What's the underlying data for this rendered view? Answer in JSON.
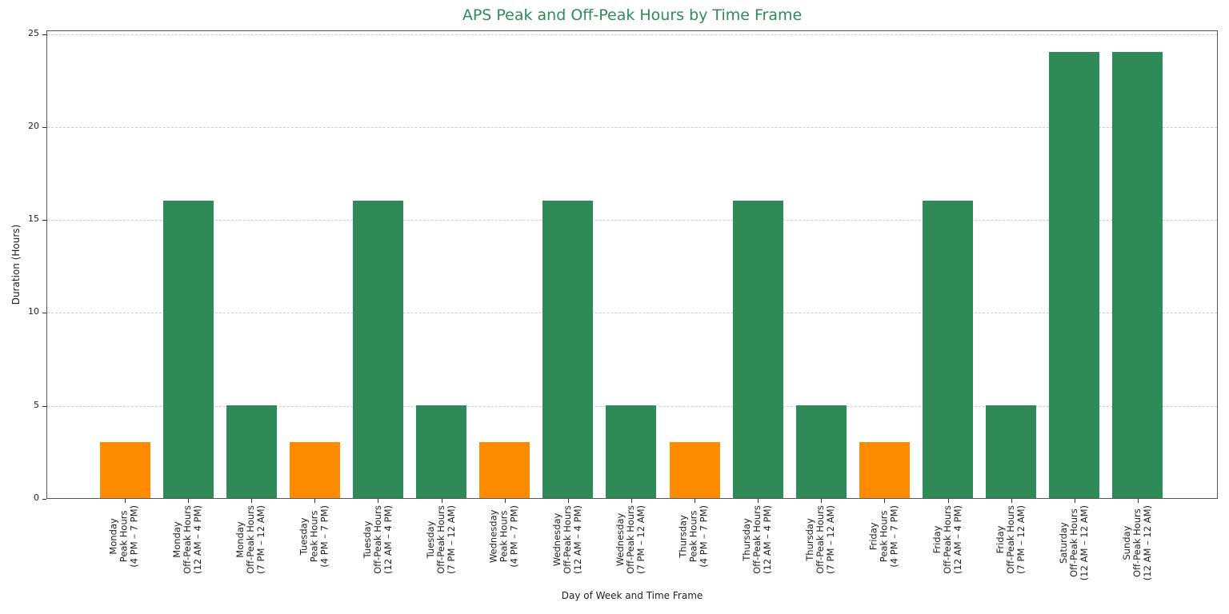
{
  "chart_data": {
    "type": "bar",
    "title": "APS Peak and Off-Peak Hours by Time Frame",
    "xlabel": "Day of Week and Time Frame",
    "ylabel": "Duration (Hours)",
    "ylim": [
      0,
      25
    ],
    "yticks": [
      0,
      5,
      10,
      15,
      20,
      25
    ],
    "grid": {
      "y": true,
      "x": false,
      "style": "dashed"
    },
    "legend": null,
    "colors": {
      "peak": "#FF8C00",
      "off_peak": "#2E8B57",
      "title": "#2E8B57"
    },
    "categories": [
      "Monday\nPeak Hours\n(4 PM – 7 PM)",
      "Monday\nOff-Peak Hours\n(12 AM – 4 PM)",
      "Monday\nOff-Peak Hours\n(7 PM – 12 AM)",
      "Tuesday\nPeak Hours\n(4 PM – 7 PM)",
      "Tuesday\nOff-Peak Hours\n(12 AM – 4 PM)",
      "Tuesday\nOff-Peak Hours\n(7 PM – 12 AM)",
      "Wednesday\nPeak Hours\n(4 PM – 7 PM)",
      "Wednesday\nOff-Peak Hours\n(12 AM – 4 PM)",
      "Wednesday\nOff-Peak Hours\n(7 PM – 12 AM)",
      "Thursday\nPeak Hours\n(4 PM – 7 PM)",
      "Thursday\nOff-Peak Hours\n(12 AM – 4 PM)",
      "Thursday\nOff-Peak Hours\n(7 PM – 12 AM)",
      "Friday\nPeak Hours\n(4 PM – 7 PM)",
      "Friday\nOff-Peak Hours\n(12 AM – 4 PM)",
      "Friday\nOff-Peak Hours\n(7 PM – 12 AM)",
      "Saturday\nOff-Peak Hours\n(12 AM – 12 AM)",
      "Sunday\nOff-Peak Hours\n(12 AM – 12 AM)"
    ],
    "values": [
      3,
      16,
      5,
      3,
      16,
      5,
      3,
      16,
      5,
      3,
      16,
      5,
      3,
      16,
      5,
      24,
      24
    ],
    "bar_types": [
      "peak",
      "off_peak",
      "off_peak",
      "peak",
      "off_peak",
      "off_peak",
      "peak",
      "off_peak",
      "off_peak",
      "peak",
      "off_peak",
      "off_peak",
      "peak",
      "off_peak",
      "off_peak",
      "off_peak",
      "off_peak"
    ]
  }
}
